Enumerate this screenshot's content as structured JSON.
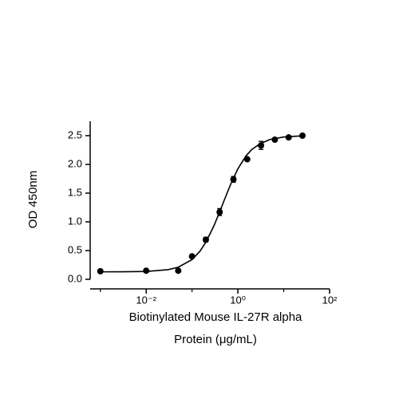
{
  "chart_data": {
    "type": "scatter",
    "xlabel": [
      "Biotinylated Mouse IL-27R alpha",
      "Protein (μg/mL)"
    ],
    "ylabel": "OD 450nm",
    "xscale": "log",
    "xlim": [
      0.0006,
      100
    ],
    "xticks": [
      {
        "value": 0.01,
        "label": "10⁻²"
      },
      {
        "value": 1,
        "label": "10⁰"
      },
      {
        "value": 100,
        "label": "10²"
      }
    ],
    "xticks_minor": [
      0.001,
      0.1,
      10
    ],
    "ylim": [
      0,
      2.75
    ],
    "yticks": [
      {
        "value": 0,
        "label": "0.0"
      },
      {
        "value": 0.5,
        "label": "0.5"
      },
      {
        "value": 1,
        "label": "1.0"
      },
      {
        "value": 1.5,
        "label": "1.5"
      },
      {
        "value": 2,
        "label": "2.0"
      },
      {
        "value": 2.5,
        "label": "2.5"
      }
    ],
    "series": [
      {
        "color": "#000000",
        "x": [
          0.001,
          0.01,
          0.05,
          0.1,
          0.2,
          0.4,
          0.8,
          1.6,
          3.2,
          6.4,
          12.8,
          25.6
        ],
        "values": [
          0.14,
          0.15,
          0.15,
          0.4,
          0.69,
          1.17,
          1.74,
          2.09,
          2.33,
          2.43,
          2.47,
          2.5
        ],
        "errors": [
          0.01,
          0.01,
          0.01,
          0.02,
          0.04,
          0.06,
          0.05,
          0.02,
          0.07,
          0.02,
          0.02,
          0.02
        ]
      }
    ],
    "fit": {
      "color": "#000000",
      "x": [
        0.001,
        0.003,
        0.01,
        0.03,
        0.05,
        0.1,
        0.15,
        0.2,
        0.3,
        0.4,
        0.5,
        0.7,
        1,
        1.5,
        2,
        3,
        5,
        10,
        20,
        30
      ],
      "values": [
        0.13,
        0.131,
        0.137,
        0.168,
        0.21,
        0.342,
        0.492,
        0.645,
        0.93,
        1.172,
        1.37,
        1.659,
        1.923,
        2.147,
        2.258,
        2.356,
        2.434,
        2.476,
        2.492,
        2.495
      ]
    }
  }
}
